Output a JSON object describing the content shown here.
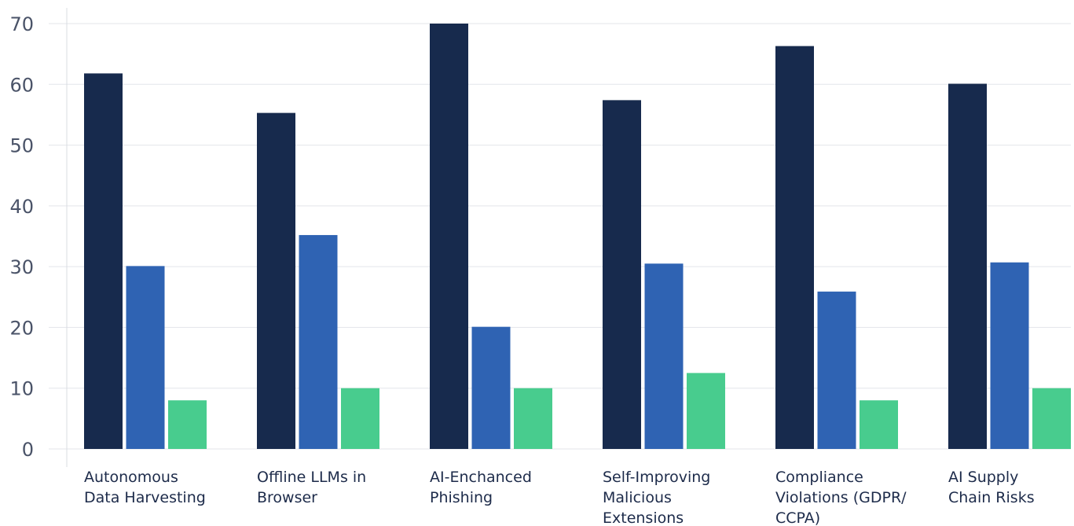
{
  "chart_data": {
    "type": "bar",
    "categories": [
      [
        "Autonomous",
        "Data Harvesting"
      ],
      [
        "Offline LLMs in",
        "Browser"
      ],
      [
        "AI-Enchanced",
        "Phishing"
      ],
      [
        "Self-Improving",
        "Malicious",
        "Extensions"
      ],
      [
        "Compliance",
        "Violations (GDPR/",
        "CCPA)"
      ],
      [
        "AI Supply",
        "Chain Risks"
      ]
    ],
    "series": [
      {
        "values": [
          61.8,
          55.3,
          70,
          57.4,
          66.3,
          60.1
        ],
        "color": "#172a4d"
      },
      {
        "values": [
          30.1,
          35.2,
          20.1,
          30.5,
          25.9,
          30.7
        ],
        "color": "#2f63b3"
      },
      {
        "values": [
          8,
          10,
          10,
          12.5,
          8,
          10
        ],
        "color": "#48cc8e"
      }
    ],
    "ylim": [
      0,
      70
    ],
    "yticks": [
      0,
      10,
      20,
      30,
      40,
      50,
      60,
      70
    ],
    "grid": true,
    "legend": "none"
  }
}
